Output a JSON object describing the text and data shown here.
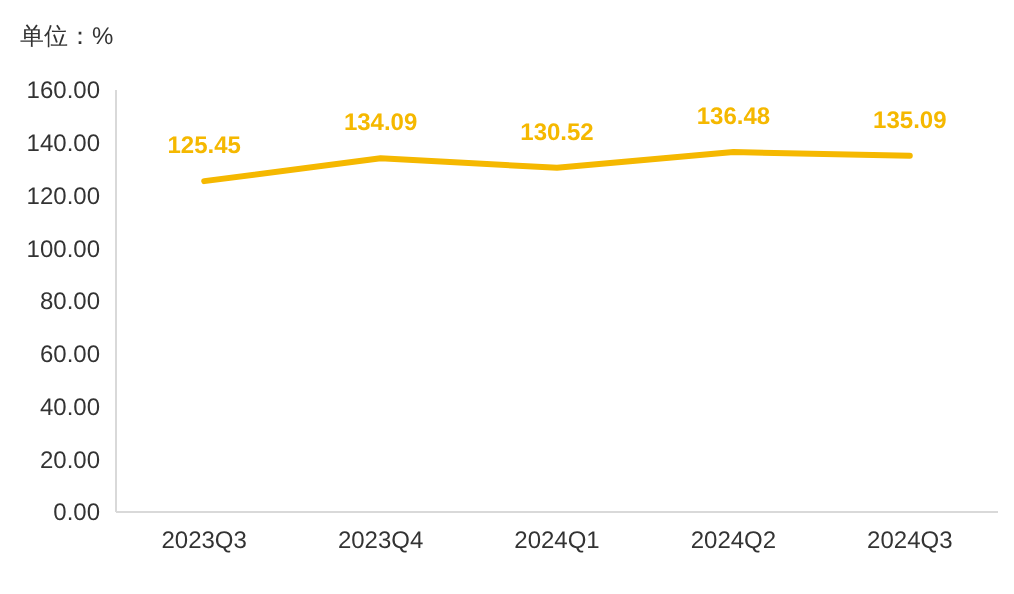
{
  "chart_data": {
    "type": "line",
    "title": "单位：%",
    "categories": [
      "2023Q3",
      "2023Q4",
      "2024Q1",
      "2024Q2",
      "2024Q3"
    ],
    "series": [
      {
        "color": "#f5b800",
        "values": [
          125.45,
          134.09,
          130.52,
          136.48,
          135.09
        ]
      }
    ],
    "ylim": [
      0,
      160
    ],
    "yticks": [
      {
        "value": 0,
        "label": "0.00"
      },
      {
        "value": 20,
        "label": "20.00"
      },
      {
        "value": 40,
        "label": "40.00"
      },
      {
        "value": 60,
        "label": "60.00"
      },
      {
        "value": 80,
        "label": "80.00"
      },
      {
        "value": 100,
        "label": "100.00"
      },
      {
        "value": 120,
        "label": "120.00"
      },
      {
        "value": 140,
        "label": "140.00"
      },
      {
        "value": 160,
        "label": "160.00"
      }
    ],
    "data_labels": true,
    "grid": false,
    "marker": "none",
    "line_style": "solid"
  }
}
